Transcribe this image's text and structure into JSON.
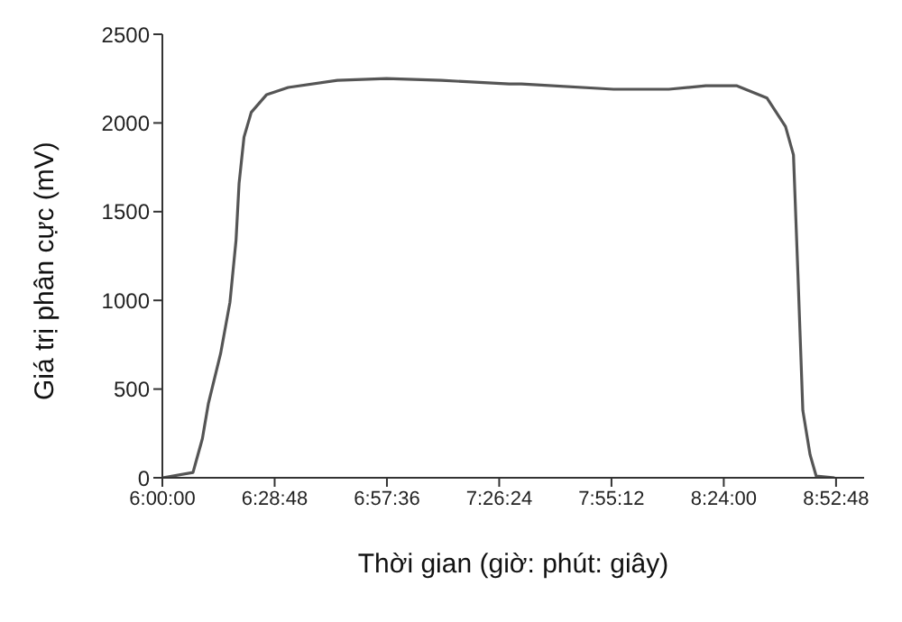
{
  "chart_data": {
    "type": "line",
    "xlabel": "Thời gian (giờ: phút: giây)",
    "ylabel": "Giá trị phân cực (mV)",
    "xlim": [
      6,
      9
    ],
    "ylim": [
      0,
      2500
    ],
    "xticks": [
      {
        "value": 6,
        "label": "6:00:00"
      },
      {
        "value": 6.48,
        "label": "6:28:48"
      },
      {
        "value": 6.96,
        "label": "6:57:36"
      },
      {
        "value": 7.44,
        "label": "7:26:24"
      },
      {
        "value": 7.92,
        "label": "7:55:12"
      },
      {
        "value": 8.4,
        "label": "8:24:00"
      },
      {
        "value": 8.88,
        "label": "8:52:48"
      }
    ],
    "yticks": [
      0,
      500,
      1000,
      1500,
      2000,
      2500
    ],
    "grid": false,
    "legend": false,
    "marker": "none",
    "line_style": "solid",
    "series": [
      {
        "color": "#555555",
        "x": [
          6,
          6.131,
          6.171,
          6.197,
          6.249,
          6.289,
          6.315,
          6.328,
          6.349,
          6.38,
          6.446,
          6.538,
          6.748,
          6.958,
          7.194,
          7.483,
          7.535,
          7.929,
          8.165,
          8.323,
          8.454,
          8.585,
          8.664,
          8.698,
          8.717,
          8.738,
          8.769,
          8.795,
          8.874
        ],
        "values": [
          0,
          30,
          220,
          420,
          700,
          990,
          1340,
          1660,
          1920,
          2060,
          2160,
          2200,
          2240,
          2250,
          2240,
          2220,
          2220,
          2190,
          2190,
          2210,
          2210,
          2140,
          1980,
          1820,
          1150,
          380,
          130,
          10,
          0
        ]
      }
    ]
  }
}
